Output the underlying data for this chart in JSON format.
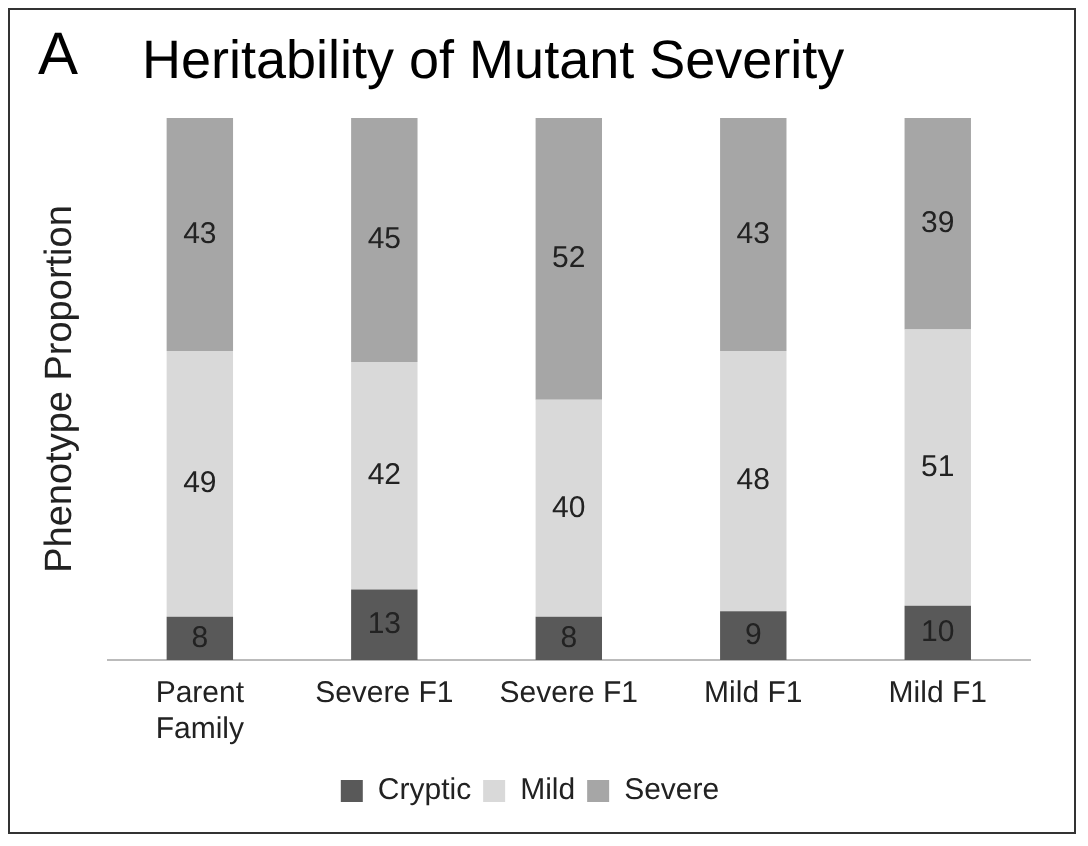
{
  "chart_data": {
    "type": "bar",
    "stacked": true,
    "title": "Heritability of Mutant Severity",
    "annotations": [
      "A"
    ],
    "ylabel": "Phenotype Proportion",
    "categories": [
      "Parent Family",
      "Severe F1",
      "Severe F1",
      "Mild F1",
      "Mild F1"
    ],
    "series": [
      {
        "name": "Cryptic",
        "color": "#595959",
        "values": [
          8,
          13,
          8,
          9,
          10
        ]
      },
      {
        "name": "Mild",
        "color": "#d9d9d9",
        "values": [
          49,
          42,
          40,
          48,
          51
        ]
      },
      {
        "name": "Severe",
        "color": "#a6a6a6",
        "values": [
          43,
          45,
          52,
          43,
          39
        ]
      }
    ],
    "ylim": [
      0,
      100
    ],
    "tick_labels": "x",
    "grid": false,
    "legend": "bottom",
    "data_labels": true
  }
}
